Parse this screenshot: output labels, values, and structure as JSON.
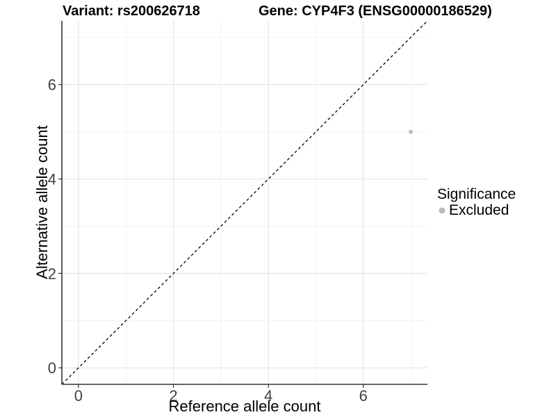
{
  "header": {
    "title_left": "Variant: rs200626718",
    "title_right": "Gene: CYP4F3 (ENSG00000186529)"
  },
  "chart_data": {
    "type": "scatter",
    "title_left": "Variant: rs200626718",
    "title_right": "Gene: CYP4F3 (ENSG00000186529)",
    "xlabel": "Reference allele count",
    "ylabel": "Alternative allele count",
    "xlim": [
      -0.35,
      7.35
    ],
    "ylim": [
      -0.35,
      7.35
    ],
    "x_ticks": [
      0,
      2,
      4,
      6
    ],
    "y_ticks": [
      0,
      2,
      4,
      6
    ],
    "x_minor_ticks": [
      1,
      3,
      5,
      7
    ],
    "y_minor_ticks": [
      1,
      3,
      5,
      7
    ],
    "grid": "major+minor",
    "points": [
      {
        "x": 7,
        "y": 5,
        "series": "Excluded"
      }
    ],
    "reference_line": {
      "style": "dashed",
      "slope": 1,
      "intercept": 0
    },
    "legend": {
      "title": "Significance",
      "position": "right",
      "entries": [
        {
          "label": "Excluded",
          "color": "#bdbdbd",
          "marker": "circle"
        }
      ]
    },
    "colors": {
      "background": "#ffffff",
      "point": "#bdbdbd",
      "grid_major": "#e5e5e5",
      "grid_minor": "#f2f2f2",
      "axis_line": "#333333",
      "tick_mark": "#333333",
      "tick_label": "#404040",
      "reference_line": "#000000"
    }
  }
}
